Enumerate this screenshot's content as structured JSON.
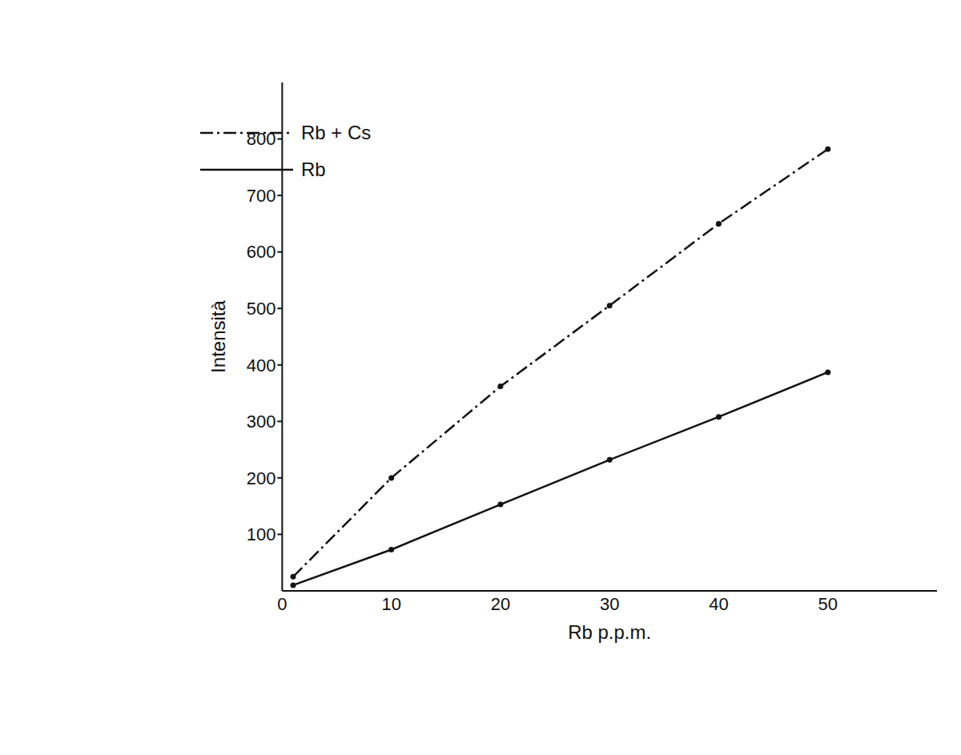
{
  "chart_data": {
    "type": "line",
    "x_label": "Rb p.p.m.",
    "y_label": "Intensità",
    "xlim": [
      0,
      60
    ],
    "xticks": [
      0,
      10,
      20,
      30,
      40,
      50
    ],
    "ylim": [
      0,
      900
    ],
    "yticks": [
      100,
      200,
      300,
      400,
      500,
      600,
      700,
      800
    ],
    "grid": false,
    "legend": "upper left",
    "series": [
      {
        "name": "Rb + Cs",
        "color": "#111111",
        "line_style": "dashdot",
        "marker": "circle",
        "x": [
          1,
          10,
          20,
          30,
          40,
          50
        ],
        "values": [
          25,
          200,
          362,
          505,
          650,
          782
        ]
      },
      {
        "name": "Rb",
        "color": "#111111",
        "line_style": "solid",
        "marker": "circle",
        "x": [
          1,
          10,
          20,
          30,
          40,
          50
        ],
        "values": [
          10,
          73,
          153,
          232,
          308,
          387
        ]
      }
    ]
  }
}
